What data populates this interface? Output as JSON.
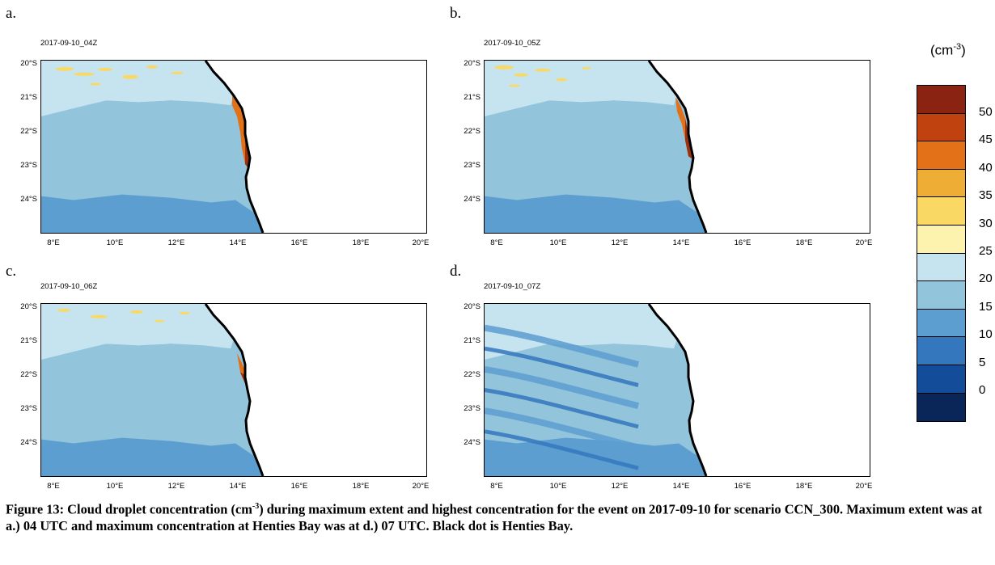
{
  "panels": [
    {
      "letter": "a.",
      "timestamp": "2017-09-10_04Z"
    },
    {
      "letter": "b.",
      "timestamp": "2017-09-10_05Z"
    },
    {
      "letter": "c.",
      "timestamp": "2017-09-10_06Z"
    },
    {
      "letter": "d.",
      "timestamp": "2017-09-10_07Z"
    }
  ],
  "lat_ticks": [
    "20°S",
    "21°S",
    "22°S",
    "23°S",
    "24°S"
  ],
  "lon_ticks": [
    "8°E",
    "10°E",
    "12°E",
    "14°E",
    "16°E",
    "18°E",
    "20°E"
  ],
  "colorbar": {
    "unit_base": "(cm",
    "unit_exp": "-3",
    "unit_close": ")",
    "labels": [
      "50",
      "45",
      "40",
      "35",
      "30",
      "25",
      "20",
      "15",
      "10",
      "5",
      "0"
    ],
    "colors": [
      "#8b2312",
      "#c0430f",
      "#e37118",
      "#eeae35",
      "#f9d864",
      "#fdf3ae",
      "#c6e4f0",
      "#92c4dc",
      "#5d9ed0",
      "#3477bd",
      "#134d9a",
      "#0a2658"
    ]
  },
  "caption": {
    "part1": "Figure 13: Cloud droplet concentration (cm",
    "sup": "-3",
    "part2": ") during maximum extent and highest concentration for the event on 2017-09-10 for scenario CCN_300. Maximum extent was at a.) 04 UTC and maximum concentration at Henties Bay was at d.) 07 UTC. Black dot is Henties Bay."
  }
}
